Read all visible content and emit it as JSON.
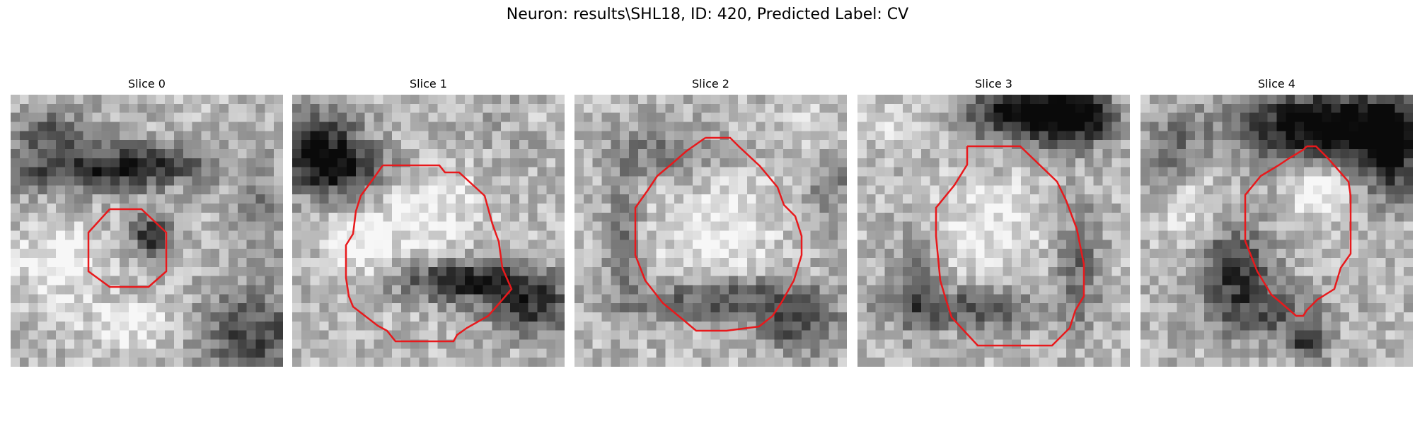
{
  "figure": {
    "title": "Neuron: results\\SHL18, ID: 420, Predicted Label: CV",
    "contour_color": "#e8191c"
  },
  "slices": [
    {
      "title": "Slice 0",
      "index": 0
    },
    {
      "title": "Slice 1",
      "index": 1
    },
    {
      "title": "Slice 2",
      "index": 2
    },
    {
      "title": "Slice 3",
      "index": 3
    },
    {
      "title": "Slice 4",
      "index": 4
    }
  ]
}
